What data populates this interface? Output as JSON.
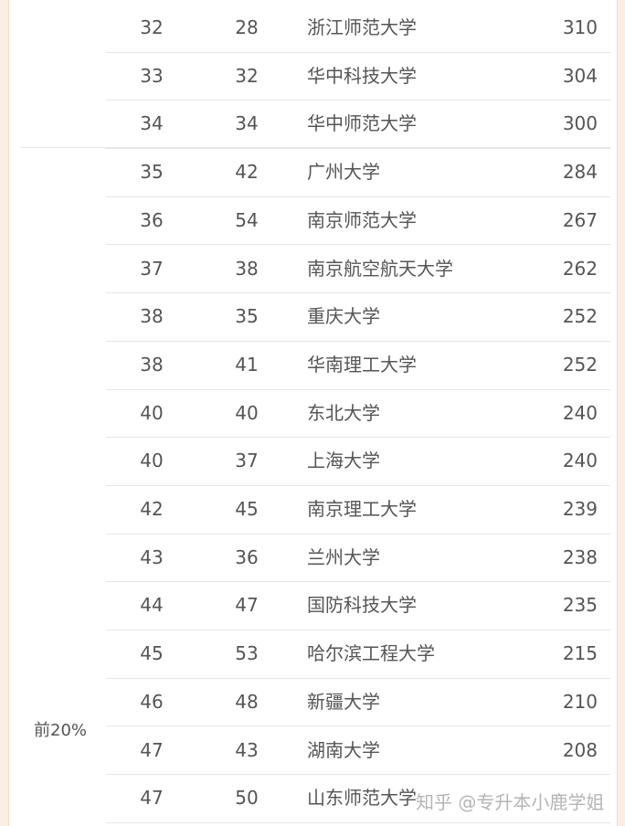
{
  "group_label": "前20%",
  "rows": [
    [
      "32",
      "28",
      "浙江师范大学",
      "310"
    ],
    [
      "33",
      "32",
      "华中科技大学",
      "304"
    ],
    [
      "34",
      "34",
      "华中师范大学",
      "300"
    ],
    [
      "35",
      "42",
      "广州大学",
      "284"
    ],
    [
      "36",
      "54",
      "南京师范大学",
      "267"
    ],
    [
      "37",
      "38",
      "南京航空航天大学",
      "262"
    ],
    [
      "38",
      "35",
      "重庆大学",
      "252"
    ],
    [
      "38",
      "41",
      "华南理工大学",
      "252"
    ],
    [
      "40",
      "40",
      "东北大学",
      "240"
    ],
    [
      "40",
      "37",
      "上海大学",
      "240"
    ],
    [
      "42",
      "45",
      "南京理工大学",
      "239"
    ],
    [
      "43",
      "36",
      "兰州大学",
      "238"
    ],
    [
      "44",
      "47",
      "国防科技大学",
      "235"
    ],
    [
      "45",
      "53",
      "哈尔滨工程大学",
      "215"
    ],
    [
      "46",
      "48",
      "新疆大学",
      "210"
    ],
    [
      "47",
      "43",
      "湖南大学",
      "208"
    ],
    [
      "47",
      "50",
      "山东师范大学",
      ""
    ]
  ],
  "watermark": "知乎 @专升本小鹿学姐"
}
